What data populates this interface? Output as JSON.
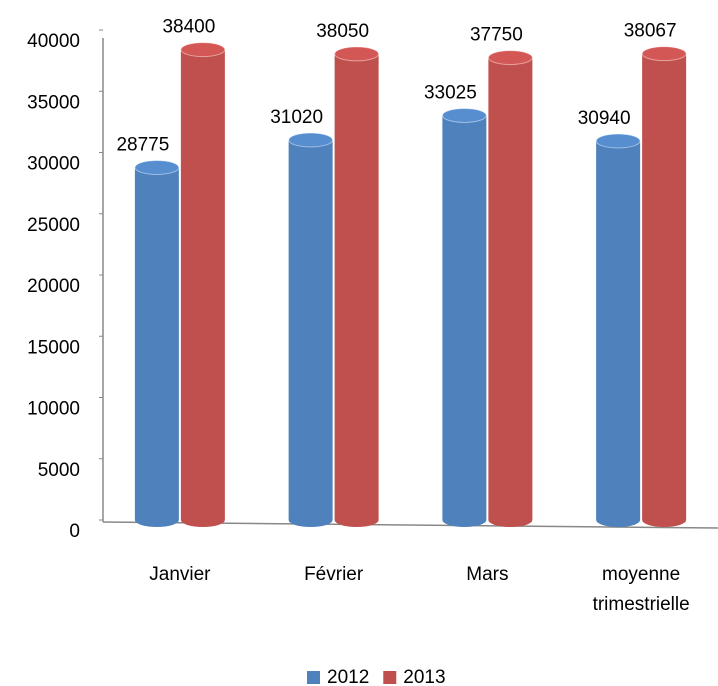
{
  "chart_data": {
    "type": "bar",
    "categories": [
      "Janvier",
      "Février",
      "Mars",
      "moyenne trimestrielle"
    ],
    "series": [
      {
        "name": "2012",
        "color": "#4f81bd",
        "values": [
          28775,
          31020,
          33025,
          30940
        ]
      },
      {
        "name": "2013",
        "color": "#c0504d",
        "values": [
          38400,
          38050,
          37750,
          38067
        ]
      }
    ],
    "ylim": [
      0,
      40000
    ],
    "yticks": [
      0,
      5000,
      10000,
      15000,
      20000,
      25000,
      30000,
      35000,
      40000
    ],
    "legend": "bottom"
  }
}
